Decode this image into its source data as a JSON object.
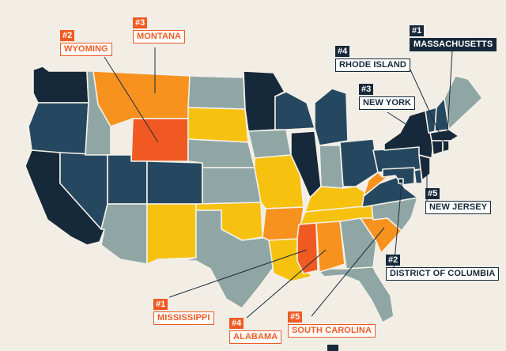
{
  "colors": {
    "best": "#16293a",
    "good": "#254860",
    "mid": "#8fa6a4",
    "fair": "#f7c20f",
    "poor": "#f7921e",
    "worst": "#f05a22",
    "background": "#f2eee6"
  },
  "states": {
    "WA": "best",
    "OR": "good",
    "CA": "best",
    "NV": "good",
    "ID": "mid",
    "MT": "poor",
    "WY": "worst",
    "UT": "good",
    "CO": "good",
    "AZ": "mid",
    "NM": "fair",
    "ND": "mid",
    "SD": "fair",
    "NE": "mid",
    "KS": "mid",
    "OK": "fair",
    "TX": "mid",
    "MN": "best",
    "IA": "mid",
    "MO": "fair",
    "AR": "poor",
    "LA": "fair",
    "WI": "good",
    "IL": "best",
    "MI": "good",
    "IN": "mid",
    "OH": "good",
    "KY": "fair",
    "TN": "fair",
    "MS": "worst",
    "AL": "poor",
    "GA": "mid",
    "FL": "mid",
    "SC": "poor",
    "NC": "mid",
    "VA": "good",
    "WV": "poor",
    "PA": "good",
    "NY": "best",
    "VT": "good",
    "NH": "good",
    "ME": "mid",
    "MA": "best",
    "RI": "best",
    "CT": "best",
    "NJ": "best",
    "DE": "good",
    "MD": "good",
    "DC": "best"
  },
  "callouts": [
    {
      "id": "wyoming",
      "kind": "worst",
      "rank": "#2",
      "name": "WYOMING"
    },
    {
      "id": "montana",
      "kind": "worst",
      "rank": "#3",
      "name": "MONTANA"
    },
    {
      "id": "massachusetts",
      "kind": "best",
      "rank": "#1",
      "name": "MASSACHUSETTS",
      "dark": true
    },
    {
      "id": "rhode-island",
      "kind": "best",
      "rank": "#4",
      "name": "RHODE ISLAND"
    },
    {
      "id": "new-york",
      "kind": "best",
      "rank": "#3",
      "name": "NEW YORK"
    },
    {
      "id": "new-jersey",
      "kind": "best",
      "rank": "#5",
      "name": "NEW JERSEY"
    },
    {
      "id": "dc",
      "kind": "best",
      "rank": "#2",
      "name": "DISTRICT OF COLUMBIA"
    },
    {
      "id": "mississippi",
      "kind": "worst",
      "rank": "#1",
      "name": "MISSISSIPPI"
    },
    {
      "id": "alabama",
      "kind": "worst",
      "rank": "#4",
      "name": "ALABAMA"
    },
    {
      "id": "south-carolina",
      "kind": "worst",
      "rank": "#5",
      "name": "SOUTH CAROLINA"
    }
  ]
}
